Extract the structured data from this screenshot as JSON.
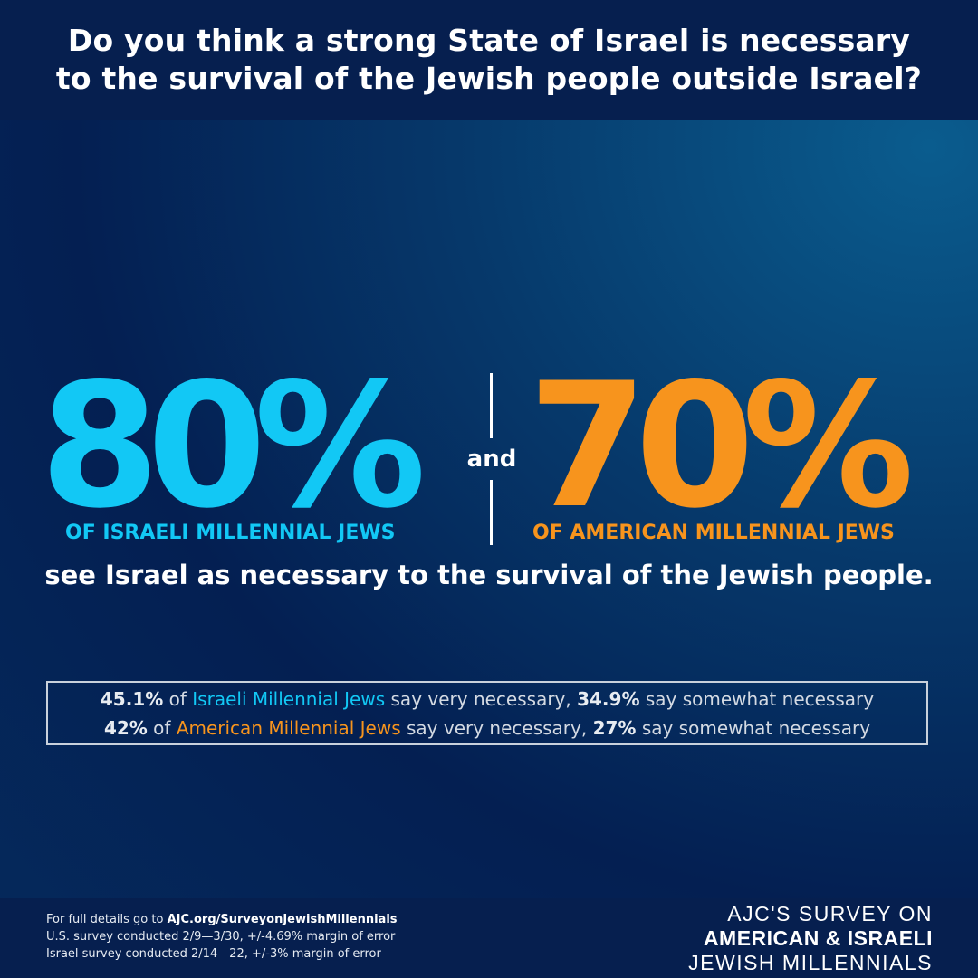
{
  "header": {
    "line1": "Do you think a strong State of Israel is necessary",
    "line2": "to the survival of the Jewish people outside Israel?"
  },
  "stats": {
    "israeli_pct": "80%",
    "israeli_label": "OF ISRAELI MILLENNIAL JEWS",
    "connector": "and",
    "american_pct": "70%",
    "american_label": "OF AMERICAN MILLENNIAL JEWS",
    "statement": "see Israel as necessary to the survival of the Jewish people."
  },
  "details": {
    "israeli": {
      "very_pct": "45.1%",
      "of": "of",
      "group": "Israeli Millennial Jews",
      "very_text": "say very necessary,",
      "somewhat_pct": "34.9%",
      "somewhat_text": "say somewhat necessary"
    },
    "american": {
      "very_pct": "42%",
      "of": "of",
      "group": "American Millennial Jews",
      "very_text": "say very necessary,",
      "somewhat_pct": "27%",
      "somewhat_text": "say somewhat necessary"
    }
  },
  "footer": {
    "details_prefix": "For full details go to",
    "details_link": "AJC.org/SurveyonJewishMillennials",
    "us_survey": "U.S. survey conducted 2/9—3/30, +/-4.69% margin of error",
    "israel_survey": "Israel survey conducted 2/14—22, +/-3% margin of error",
    "brand_line1": "AJC'S SURVEY ON",
    "brand_line2": "AMERICAN & ISRAELI",
    "brand_line3": "JEWISH MILLENNIALS"
  },
  "colors": {
    "israeli_accent": "#12c8f5",
    "american_accent": "#f7941d",
    "header_bg": "#061f4f"
  }
}
